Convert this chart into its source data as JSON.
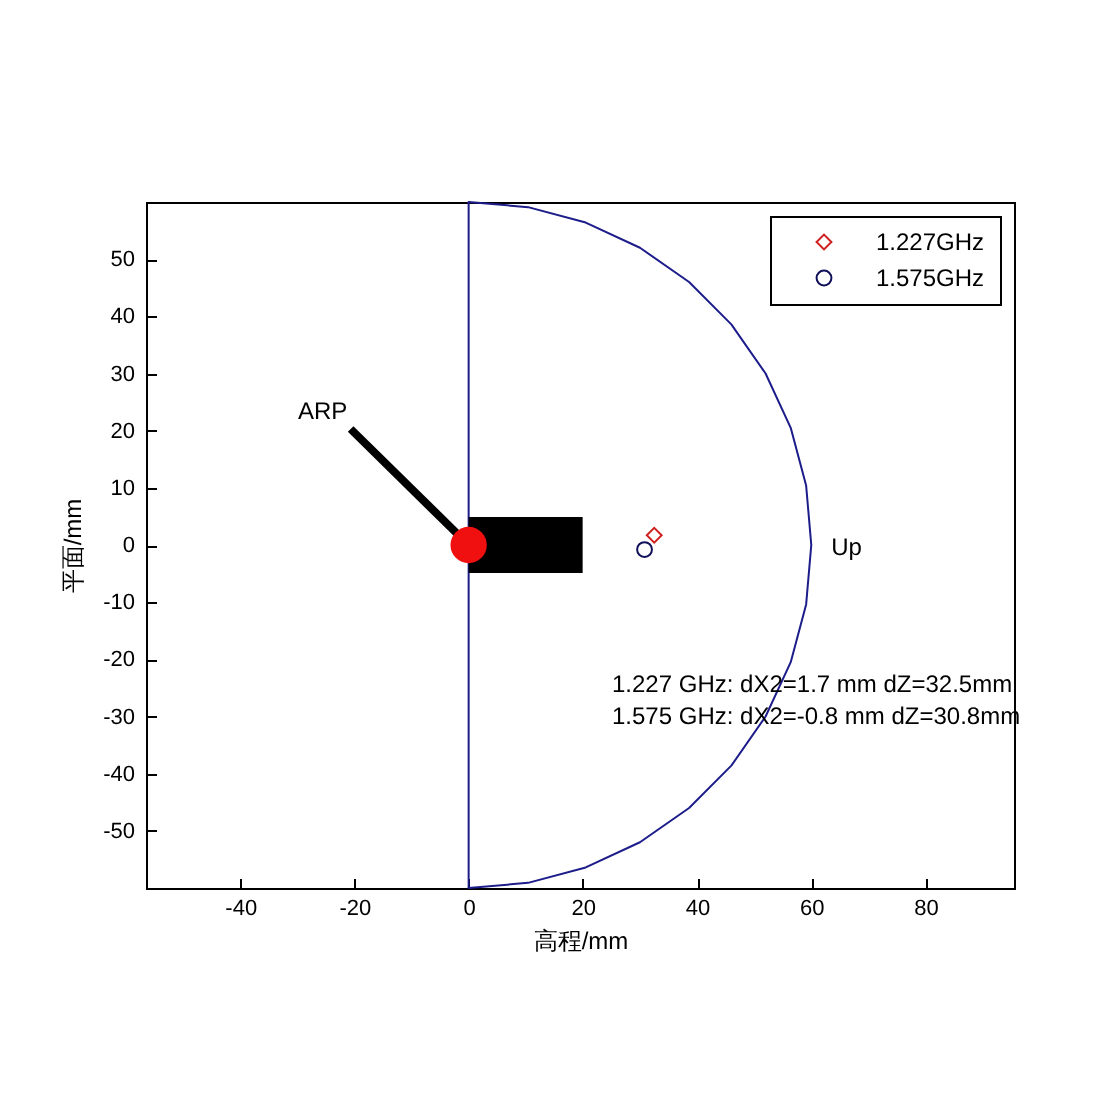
{
  "chart_data": {
    "type": "scatter",
    "xlabel": "高程/mm",
    "ylabel": "平面/mm",
    "xlim": [
      -56.5,
      95.5
    ],
    "ylim": [
      -60,
      60
    ],
    "xticks": [
      -40,
      -20,
      0,
      20,
      40,
      60,
      80
    ],
    "yticks": [
      -50,
      -40,
      -30,
      -20,
      -10,
      0,
      10,
      20,
      30,
      40,
      50
    ],
    "legend": "top right",
    "series": [
      {
        "type": "line",
        "color": "#1c1c8a",
        "x": [
          0,
          10.4,
          20.5,
          30,
          38.6,
          46,
          52,
          56.4,
          59.1,
          60,
          59.1,
          56.4,
          52,
          46,
          38.6,
          30,
          20.5,
          10.4,
          0
        ],
        "values": [
          60,
          59.1,
          56.4,
          52,
          46,
          38.6,
          30,
          20.5,
          10.4,
          0,
          -10.4,
          -20.5,
          -30,
          -38.6,
          -46,
          -52,
          -56.4,
          -59.1,
          -60
        ]
      },
      {
        "name": "1.227GHz",
        "color": "#d02020",
        "marker": "diamond",
        "x": [
          32.5
        ],
        "values": [
          1.7
        ]
      },
      {
        "name": "1.575GHz",
        "color": "#10105a",
        "marker": "circle",
        "x": [
          30.8
        ],
        "values": [
          -0.8
        ]
      }
    ],
    "ref_lines": [
      {
        "axis": "x",
        "value": 0,
        "color": "#1c1c8a"
      }
    ],
    "annotations": [
      {
        "text": "ARP",
        "x": 0,
        "y": 0
      },
      {
        "text": "Up",
        "x": 60,
        "y": 0
      },
      "1.227 GHz: dX2=1.7 mm dZ=32.5mm",
      "1.575 GHz: dX2=-0.8 mm dZ=30.8mm"
    ]
  }
}
